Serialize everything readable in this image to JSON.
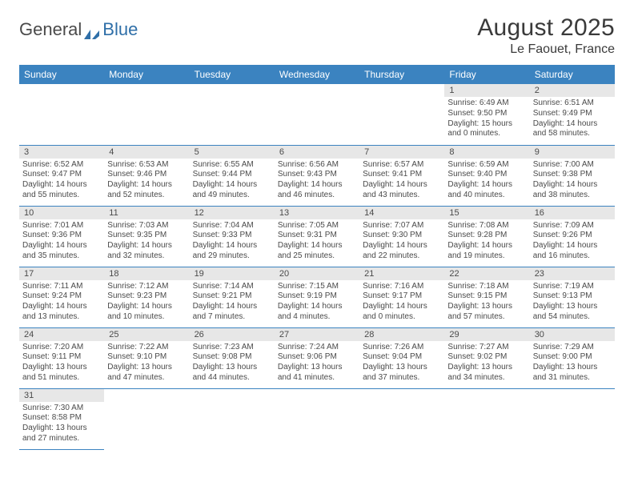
{
  "logo": {
    "general": "General",
    "blue": "Blue"
  },
  "title": {
    "month": "August 2025",
    "location": "Le Faouet, France"
  },
  "colors": {
    "header_bg": "#3b83c0",
    "header_text": "#ffffff",
    "daynum_bg": "#e7e7e7",
    "text": "#4a4a4a",
    "border": "#3b83c0",
    "logo_icon": "#2f6fa8"
  },
  "day_headers": [
    "Sunday",
    "Monday",
    "Tuesday",
    "Wednesday",
    "Thursday",
    "Friday",
    "Saturday"
  ],
  "weeks": [
    [
      null,
      null,
      null,
      null,
      null,
      {
        "n": "1",
        "sr": "6:49 AM",
        "ss": "9:50 PM",
        "dl": "Daylight: 15 hours and 0 minutes."
      },
      {
        "n": "2",
        "sr": "6:51 AM",
        "ss": "9:49 PM",
        "dl": "Daylight: 14 hours and 58 minutes."
      }
    ],
    [
      {
        "n": "3",
        "sr": "6:52 AM",
        "ss": "9:47 PM",
        "dl": "Daylight: 14 hours and 55 minutes."
      },
      {
        "n": "4",
        "sr": "6:53 AM",
        "ss": "9:46 PM",
        "dl": "Daylight: 14 hours and 52 minutes."
      },
      {
        "n": "5",
        "sr": "6:55 AM",
        "ss": "9:44 PM",
        "dl": "Daylight: 14 hours and 49 minutes."
      },
      {
        "n": "6",
        "sr": "6:56 AM",
        "ss": "9:43 PM",
        "dl": "Daylight: 14 hours and 46 minutes."
      },
      {
        "n": "7",
        "sr": "6:57 AM",
        "ss": "9:41 PM",
        "dl": "Daylight: 14 hours and 43 minutes."
      },
      {
        "n": "8",
        "sr": "6:59 AM",
        "ss": "9:40 PM",
        "dl": "Daylight: 14 hours and 40 minutes."
      },
      {
        "n": "9",
        "sr": "7:00 AM",
        "ss": "9:38 PM",
        "dl": "Daylight: 14 hours and 38 minutes."
      }
    ],
    [
      {
        "n": "10",
        "sr": "7:01 AM",
        "ss": "9:36 PM",
        "dl": "Daylight: 14 hours and 35 minutes."
      },
      {
        "n": "11",
        "sr": "7:03 AM",
        "ss": "9:35 PM",
        "dl": "Daylight: 14 hours and 32 minutes."
      },
      {
        "n": "12",
        "sr": "7:04 AM",
        "ss": "9:33 PM",
        "dl": "Daylight: 14 hours and 29 minutes."
      },
      {
        "n": "13",
        "sr": "7:05 AM",
        "ss": "9:31 PM",
        "dl": "Daylight: 14 hours and 25 minutes."
      },
      {
        "n": "14",
        "sr": "7:07 AM",
        "ss": "9:30 PM",
        "dl": "Daylight: 14 hours and 22 minutes."
      },
      {
        "n": "15",
        "sr": "7:08 AM",
        "ss": "9:28 PM",
        "dl": "Daylight: 14 hours and 19 minutes."
      },
      {
        "n": "16",
        "sr": "7:09 AM",
        "ss": "9:26 PM",
        "dl": "Daylight: 14 hours and 16 minutes."
      }
    ],
    [
      {
        "n": "17",
        "sr": "7:11 AM",
        "ss": "9:24 PM",
        "dl": "Daylight: 14 hours and 13 minutes."
      },
      {
        "n": "18",
        "sr": "7:12 AM",
        "ss": "9:23 PM",
        "dl": "Daylight: 14 hours and 10 minutes."
      },
      {
        "n": "19",
        "sr": "7:14 AM",
        "ss": "9:21 PM",
        "dl": "Daylight: 14 hours and 7 minutes."
      },
      {
        "n": "20",
        "sr": "7:15 AM",
        "ss": "9:19 PM",
        "dl": "Daylight: 14 hours and 4 minutes."
      },
      {
        "n": "21",
        "sr": "7:16 AM",
        "ss": "9:17 PM",
        "dl": "Daylight: 14 hours and 0 minutes."
      },
      {
        "n": "22",
        "sr": "7:18 AM",
        "ss": "9:15 PM",
        "dl": "Daylight: 13 hours and 57 minutes."
      },
      {
        "n": "23",
        "sr": "7:19 AM",
        "ss": "9:13 PM",
        "dl": "Daylight: 13 hours and 54 minutes."
      }
    ],
    [
      {
        "n": "24",
        "sr": "7:20 AM",
        "ss": "9:11 PM",
        "dl": "Daylight: 13 hours and 51 minutes."
      },
      {
        "n": "25",
        "sr": "7:22 AM",
        "ss": "9:10 PM",
        "dl": "Daylight: 13 hours and 47 minutes."
      },
      {
        "n": "26",
        "sr": "7:23 AM",
        "ss": "9:08 PM",
        "dl": "Daylight: 13 hours and 44 minutes."
      },
      {
        "n": "27",
        "sr": "7:24 AM",
        "ss": "9:06 PM",
        "dl": "Daylight: 13 hours and 41 minutes."
      },
      {
        "n": "28",
        "sr": "7:26 AM",
        "ss": "9:04 PM",
        "dl": "Daylight: 13 hours and 37 minutes."
      },
      {
        "n": "29",
        "sr": "7:27 AM",
        "ss": "9:02 PM",
        "dl": "Daylight: 13 hours and 34 minutes."
      },
      {
        "n": "30",
        "sr": "7:29 AM",
        "ss": "9:00 PM",
        "dl": "Daylight: 13 hours and 31 minutes."
      }
    ],
    [
      {
        "n": "31",
        "sr": "7:30 AM",
        "ss": "8:58 PM",
        "dl": "Daylight: 13 hours and 27 minutes."
      },
      null,
      null,
      null,
      null,
      null,
      null
    ]
  ],
  "labels": {
    "sunrise": "Sunrise:",
    "sunset": "Sunset:"
  }
}
